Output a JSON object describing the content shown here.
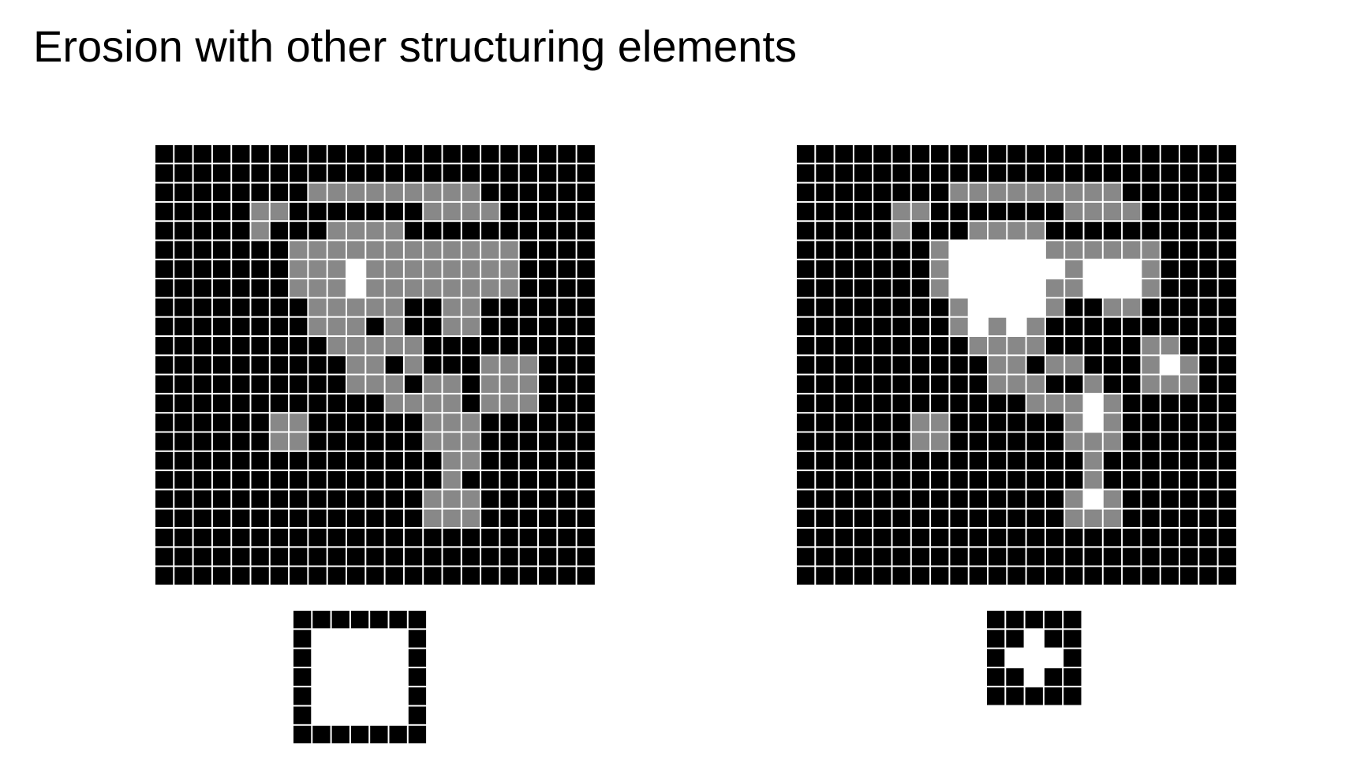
{
  "slide": {
    "title": "Erosion with other structuring elements"
  },
  "colors": {
    "black": "#000000",
    "gray": "#888888",
    "white": "#ffffff",
    "gridline": "#ffffff"
  },
  "legend": {
    "0": "black",
    "1": "gray",
    "2": "white"
  },
  "figures": [
    {
      "name": "erosion-grid-left",
      "rows": [
        "00000000000000000000000",
        "00000000000000000000000",
        "00000000111111111000000",
        "00000110000000111100000",
        "00000100011110000000000",
        "00000001111111111110000",
        "00000001112111111110000",
        "00000001112111111110000",
        "00000000111110011000000",
        "00000000111010011000000",
        "00000000011111000000000",
        "00000000001101000111000",
        "00000000001110110111000",
        "00000000000011110111000",
        "00000011000000111000000",
        "00000011000000111000000",
        "00000000000000011000000",
        "00000000000000010000000",
        "00000000000000111000000",
        "00000000000000111000000",
        "00000000000000000000000",
        "00000000000000000000000",
        "00000000000000000000000"
      ]
    },
    {
      "name": "erosion-grid-right",
      "rows": [
        "00000000000000000000000",
        "00000000000000000000000",
        "00000000111111111000000",
        "00000110000000111100000",
        "00000100011110000000000",
        "00000001222221111110000",
        "00000001222222122210000",
        "00000001222221122210000",
        "00000000122221001100000",
        "00000000121210000000000",
        "00000000011110000011000",
        "00000000001101100012100",
        "00000000001110010011100",
        "00000000000011121000000",
        "00000011000000121000000",
        "00000011000000111000000",
        "00000000000000010000000",
        "00000000000000010000000",
        "00000000000000121000000",
        "00000000000000111000000",
        "00000000000000000000000",
        "00000000000000000000000",
        "00000000000000000000000"
      ]
    },
    {
      "name": "structuring-element-square",
      "rows": [
        "0000000",
        "0222220",
        "0222220",
        "0222220",
        "0222220",
        "0222220",
        "0000000"
      ]
    },
    {
      "name": "structuring-element-cross",
      "rows": [
        "00000",
        "00200",
        "02220",
        "00200",
        "00000"
      ]
    }
  ]
}
